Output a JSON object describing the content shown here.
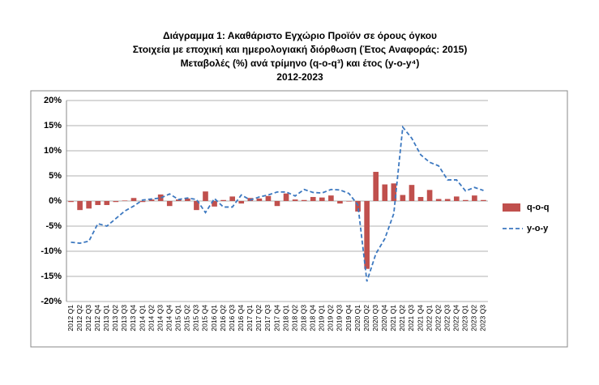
{
  "chart_data": {
    "type": "bar_line",
    "title": "Διάγραμμα 1: Ακαθάριστο Εγχώριο Προϊόν σε όρους όγκου",
    "subtitle": [
      "Στοιχεία με εποχική και ημερολογιακή διόρθωση (Έτος Αναφοράς: 2015)",
      "Μεταβολές (%) ανά τρίμηνο (q-o-q³) και έτος (y-o-y⁴)",
      "2012-2023"
    ],
    "categories": [
      "2012 Q1",
      "2012 Q2",
      "2012 Q3",
      "2012 Q4",
      "2013 Q1",
      "2013 Q2",
      "2013 Q3",
      "2013 Q4",
      "2014 Q1",
      "2014 Q2",
      "2014 Q3",
      "2014 Q4",
      "2015 Q1",
      "2015 Q2",
      "2015 Q3",
      "2015 Q4",
      "2016 Q1",
      "2016 Q2",
      "2016 Q3",
      "2016 Q4",
      "2017 Q1",
      "2017 Q2",
      "2017 Q3",
      "2017 Q4",
      "2018 Q1",
      "2018 Q2",
      "2018 Q3",
      "2018 Q4",
      "2019 Q1",
      "2019 Q2",
      "2019 Q3",
      "2019 Q4",
      "2020 Q1",
      "2020 Q2",
      "2020 Q3",
      "2020 Q4",
      "2021 Q1",
      "2021 Q2",
      "2021 Q3",
      "2021 Q4",
      "2022 Q1",
      "2022 Q2",
      "2022 Q3",
      "2022 Q4",
      "2023 Q1",
      "2023 Q2",
      "2023 Q3"
    ],
    "series": [
      {
        "name": "q-o-q",
        "type": "bar",
        "color": "#c0504d",
        "values": [
          -0.2,
          -1.8,
          -1.5,
          -0.8,
          -0.8,
          -0.2,
          0.1,
          0.6,
          -0.2,
          0.3,
          1.3,
          -1.0,
          0.3,
          0.5,
          -1.8,
          1.9,
          -1.1,
          0.2,
          0.9,
          -0.5,
          0.6,
          0.5,
          1.0,
          -1.0,
          1.5,
          0.3,
          0.2,
          0.8,
          0.7,
          1.1,
          -0.5,
          -0.1,
          -2.1,
          -13.5,
          5.8,
          3.3,
          3.5,
          1.2,
          3.2,
          0.8,
          2.2,
          0.4,
          0.4,
          0.9,
          0.2,
          1.1,
          0.2
        ]
      },
      {
        "name": "y-o-y",
        "type": "line",
        "color": "#3c78c0",
        "values": [
          -8.2,
          -8.4,
          -8.0,
          -4.5,
          -5.0,
          -3.5,
          -2.0,
          -1.0,
          0.2,
          0.4,
          0.6,
          1.4,
          0.3,
          0.6,
          0.3,
          -2.3,
          0.5,
          -1.2,
          -1.2,
          1.2,
          0.2,
          0.8,
          1.2,
          1.8,
          1.8,
          1.0,
          2.3,
          1.7,
          1.6,
          2.3,
          2.2,
          1.5,
          -0.8,
          -16.0,
          -10.5,
          -7.5,
          -2.5,
          14.7,
          12.5,
          9.2,
          7.7,
          7.0,
          4.2,
          4.2,
          2.0,
          2.7,
          2.1
        ]
      }
    ],
    "ylim": [
      -20,
      20
    ],
    "yticks": [
      {
        "value": -20,
        "label": "-20%"
      },
      {
        "value": -15,
        "label": "-15%"
      },
      {
        "value": -10,
        "label": "-10%"
      },
      {
        "value": -5,
        "label": "-5%"
      },
      {
        "value": 0,
        "label": "0%"
      },
      {
        "value": 5,
        "label": "5%"
      },
      {
        "value": 10,
        "label": "10%"
      },
      {
        "value": 15,
        "label": "15%"
      },
      {
        "value": 20,
        "label": "20%"
      }
    ],
    "grid": true,
    "legend": "right"
  }
}
